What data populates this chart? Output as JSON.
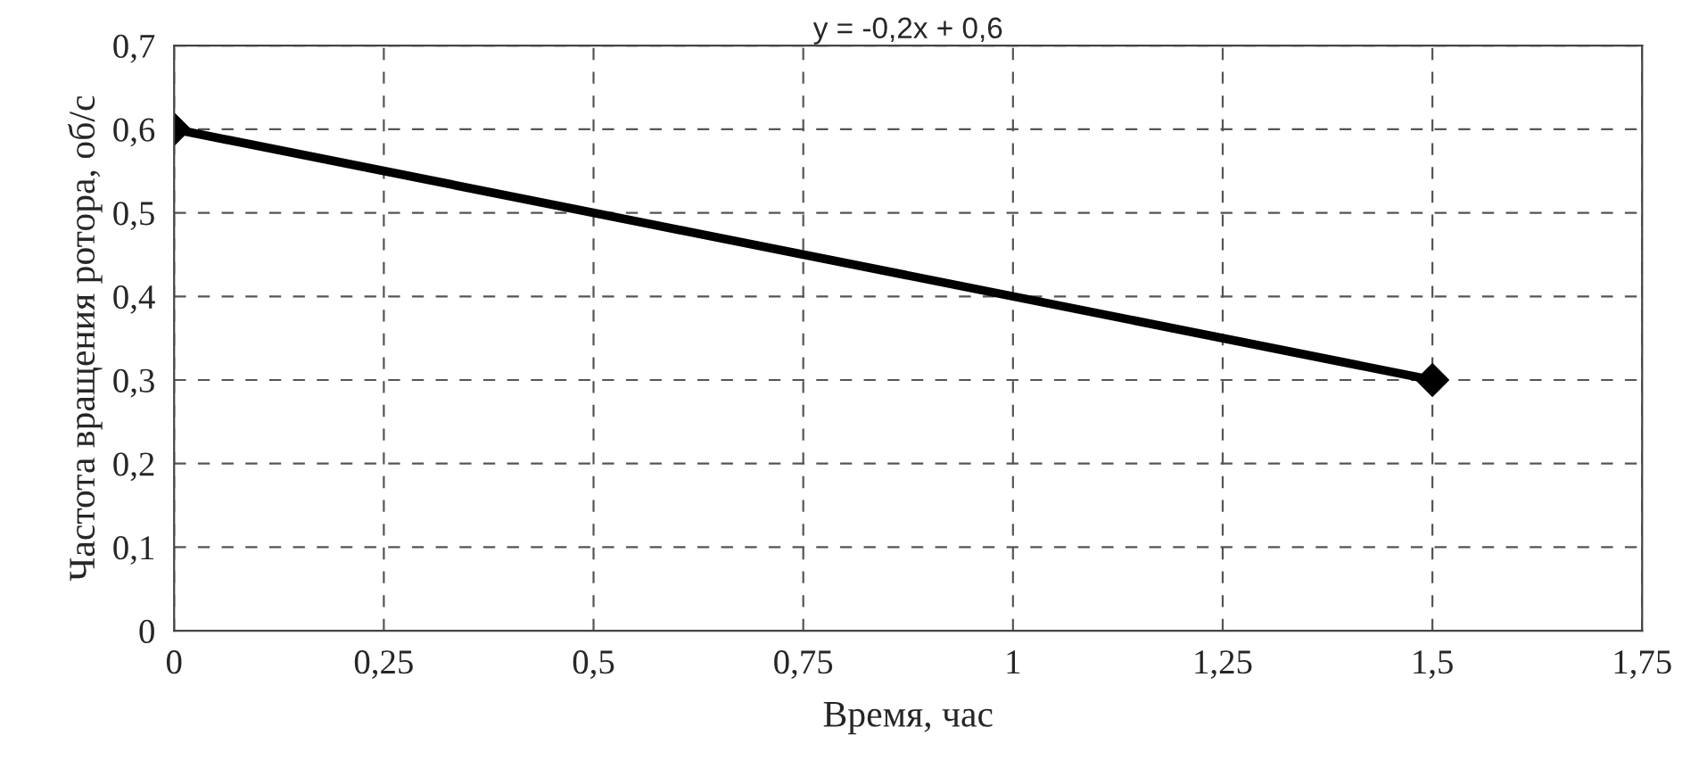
{
  "chart_data": {
    "type": "line",
    "title": "y = -0,2x + 0,6",
    "xlabel": "Время, час",
    "ylabel": "Частота вращения ротора, об/с",
    "x": [
      0,
      1.5
    ],
    "series": [
      {
        "color": "#000000",
        "values": [
          0.6,
          0.3
        ]
      }
    ],
    "xlim": [
      0,
      1.75
    ],
    "xticks": [
      0,
      {
        "value": 0.25,
        "label": "0,25"
      },
      {
        "value": 0.5,
        "label": "0,5"
      },
      {
        "value": 0.75,
        "label": "0,75"
      },
      1,
      {
        "value": 1.25,
        "label": "1,25"
      },
      {
        "value": 1.5,
        "label": "1,5"
      },
      {
        "value": 1.75,
        "label": "1,75"
      }
    ],
    "ylim": [
      0,
      0.7
    ],
    "yticks": [
      0,
      {
        "value": 0.1,
        "label": "0,1"
      },
      {
        "value": 0.2,
        "label": "0,2"
      },
      {
        "value": 0.3,
        "label": "0,3"
      },
      {
        "value": 0.4,
        "label": "0,4"
      },
      {
        "value": 0.5,
        "label": "0,5"
      },
      {
        "value": 0.6,
        "label": "0,6"
      },
      {
        "value": 0.7,
        "label": "0,7"
      }
    ],
    "grid": true,
    "marker": "diamond",
    "line_style": "solid"
  }
}
